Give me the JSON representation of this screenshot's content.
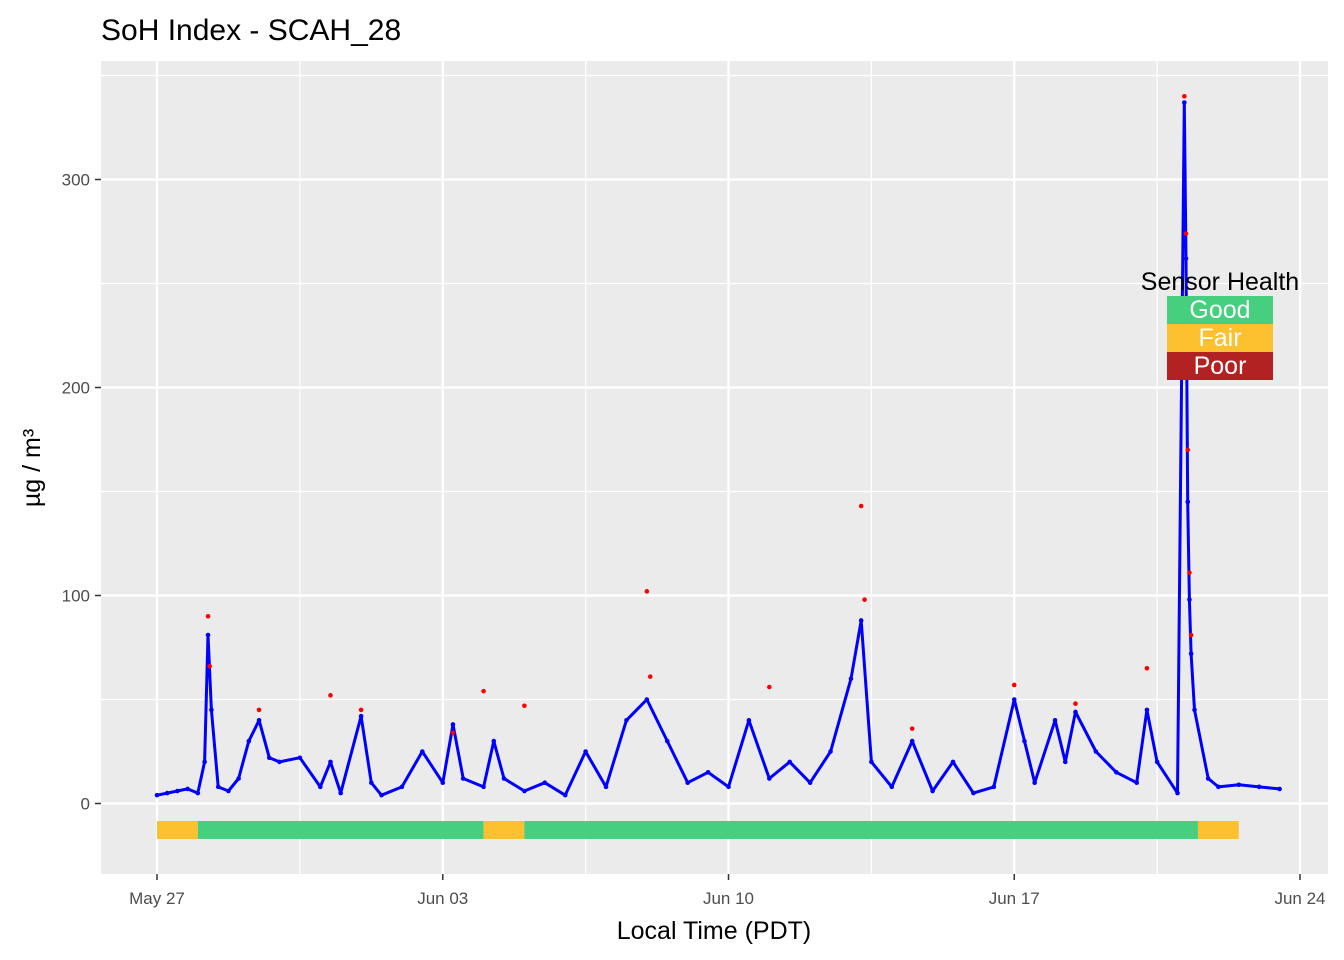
{
  "chart_data": {
    "type": "scatter",
    "title": "SoH Index - SCAH_28",
    "xlabel": "Local Time (PDT)",
    "ylabel": "µg / m³",
    "x_date_range": [
      "2018-05-27",
      "2018-06-24"
    ],
    "x_ticks": [
      {
        "date": "2018-05-27",
        "label": "May 27"
      },
      {
        "date": "2018-06-03",
        "label": "Jun 03"
      },
      {
        "date": "2018-06-10",
        "label": "Jun 10"
      },
      {
        "date": "2018-06-17",
        "label": "Jun 17"
      },
      {
        "date": "2018-06-24",
        "label": "Jun 24"
      }
    ],
    "ylim": [
      -34,
      352
    ],
    "y_ticks": [
      0,
      100,
      200,
      300
    ],
    "grid": true,
    "series_colors": {
      "a": "#ff0000",
      "b": "#0000ff"
    },
    "series": [
      {
        "color": "#0000ff",
        "points": [
          [
            "2018-05-27 00:00",
            4
          ],
          [
            "2018-05-27 06:00",
            5
          ],
          [
            "2018-05-27 12:00",
            6
          ],
          [
            "2018-05-27 18:00",
            7
          ],
          [
            "2018-05-28 00:00",
            5
          ],
          [
            "2018-05-28 04:00",
            20
          ],
          [
            "2018-05-28 06:00",
            81
          ],
          [
            "2018-05-28 08:00",
            45
          ],
          [
            "2018-05-28 12:00",
            8
          ],
          [
            "2018-05-28 18:00",
            6
          ],
          [
            "2018-05-29 00:00",
            12
          ],
          [
            "2018-05-29 06:00",
            30
          ],
          [
            "2018-05-29 12:00",
            40
          ],
          [
            "2018-05-29 18:00",
            22
          ],
          [
            "2018-05-30 00:00",
            20
          ],
          [
            "2018-05-30 12:00",
            22
          ],
          [
            "2018-05-31 00:00",
            8
          ],
          [
            "2018-05-31 06:00",
            20
          ],
          [
            "2018-05-31 12:00",
            5
          ],
          [
            "2018-06-01 00:00",
            42
          ],
          [
            "2018-06-01 06:00",
            10
          ],
          [
            "2018-06-01 12:00",
            4
          ],
          [
            "2018-06-02 00:00",
            8
          ],
          [
            "2018-06-02 12:00",
            25
          ],
          [
            "2018-06-03 00:00",
            10
          ],
          [
            "2018-06-03 06:00",
            38
          ],
          [
            "2018-06-03 12:00",
            12
          ],
          [
            "2018-06-04 00:00",
            8
          ],
          [
            "2018-06-04 06:00",
            30
          ],
          [
            "2018-06-04 12:00",
            12
          ],
          [
            "2018-06-05 00:00",
            6
          ],
          [
            "2018-06-05 12:00",
            10
          ],
          [
            "2018-06-06 00:00",
            4
          ],
          [
            "2018-06-06 12:00",
            25
          ],
          [
            "2018-06-07 00:00",
            8
          ],
          [
            "2018-06-07 12:00",
            40
          ],
          [
            "2018-06-08 00:00",
            50
          ],
          [
            "2018-06-08 12:00",
            30
          ],
          [
            "2018-06-09 00:00",
            10
          ],
          [
            "2018-06-09 12:00",
            15
          ],
          [
            "2018-06-10 00:00",
            8
          ],
          [
            "2018-06-10 12:00",
            40
          ],
          [
            "2018-06-11 00:00",
            12
          ],
          [
            "2018-06-11 12:00",
            20
          ],
          [
            "2018-06-12 00:00",
            10
          ],
          [
            "2018-06-12 12:00",
            25
          ],
          [
            "2018-06-13 00:00",
            60
          ],
          [
            "2018-06-13 06:00",
            88
          ],
          [
            "2018-06-13 12:00",
            20
          ],
          [
            "2018-06-14 00:00",
            8
          ],
          [
            "2018-06-14 12:00",
            30
          ],
          [
            "2018-06-15 00:00",
            6
          ],
          [
            "2018-06-15 12:00",
            20
          ],
          [
            "2018-06-16 00:00",
            5
          ],
          [
            "2018-06-16 12:00",
            8
          ],
          [
            "2018-06-17 00:00",
            50
          ],
          [
            "2018-06-17 06:00",
            30
          ],
          [
            "2018-06-17 12:00",
            10
          ],
          [
            "2018-06-18 00:00",
            40
          ],
          [
            "2018-06-18 06:00",
            20
          ],
          [
            "2018-06-18 12:00",
            44
          ],
          [
            "2018-06-19 00:00",
            25
          ],
          [
            "2018-06-19 12:00",
            15
          ],
          [
            "2018-06-20 00:00",
            10
          ],
          [
            "2018-06-20 06:00",
            45
          ],
          [
            "2018-06-20 12:00",
            20
          ],
          [
            "2018-06-21 00:00",
            5
          ],
          [
            "2018-06-21 04:00",
            337
          ],
          [
            "2018-06-21 05:00",
            262
          ],
          [
            "2018-06-21 06:00",
            145
          ],
          [
            "2018-06-21 07:00",
            98
          ],
          [
            "2018-06-21 08:00",
            72
          ],
          [
            "2018-06-21 10:00",
            45
          ],
          [
            "2018-06-21 18:00",
            12
          ],
          [
            "2018-06-22 00:00",
            8
          ],
          [
            "2018-06-22 12:00",
            9
          ],
          [
            "2018-06-23 00:00",
            8
          ],
          [
            "2018-06-23 12:00",
            7
          ]
        ]
      },
      {
        "color": "#ff0000",
        "points": [
          [
            "2018-05-28 06:00",
            90
          ],
          [
            "2018-05-28 07:00",
            66
          ],
          [
            "2018-05-29 12:00",
            45
          ],
          [
            "2018-05-31 06:00",
            52
          ],
          [
            "2018-06-01 00:00",
            45
          ],
          [
            "2018-06-03 06:00",
            34
          ],
          [
            "2018-06-04 00:00",
            54
          ],
          [
            "2018-06-05 00:00",
            47
          ],
          [
            "2018-06-08 00:00",
            102
          ],
          [
            "2018-06-08 02:00",
            61
          ],
          [
            "2018-06-11 00:00",
            56
          ],
          [
            "2018-06-13 06:00",
            143
          ],
          [
            "2018-06-13 08:00",
            98
          ],
          [
            "2018-06-14 12:00",
            36
          ],
          [
            "2018-06-17 00:00",
            57
          ],
          [
            "2018-06-18 12:00",
            48
          ],
          [
            "2018-06-20 06:00",
            65
          ],
          [
            "2018-06-21 04:00",
            340
          ],
          [
            "2018-06-21 05:00",
            274
          ],
          [
            "2018-06-21 06:00",
            170
          ],
          [
            "2018-06-21 07:00",
            111
          ],
          [
            "2018-06-21 08:00",
            81
          ]
        ]
      }
    ],
    "health_bar": [
      {
        "start": "2018-05-27 00:00",
        "end": "2018-05-28 00:00",
        "state": "Fair"
      },
      {
        "start": "2018-05-28 00:00",
        "end": "2018-06-04 00:00",
        "state": "Good"
      },
      {
        "start": "2018-06-04 00:00",
        "end": "2018-06-05 00:00",
        "state": "Fair"
      },
      {
        "start": "2018-06-05 00:00",
        "end": "2018-06-21 12:00",
        "state": "Good"
      },
      {
        "start": "2018-06-21 12:00",
        "end": "2018-06-22 12:00",
        "state": "Fair"
      }
    ],
    "legend": {
      "title": "Sensor Health",
      "placement": "right",
      "items": [
        {
          "label": "Good",
          "color": "#45cf7e"
        },
        {
          "label": "Fair",
          "color": "#fdc02f"
        },
        {
          "label": "Poor",
          "color": "#b22222"
        }
      ]
    }
  }
}
